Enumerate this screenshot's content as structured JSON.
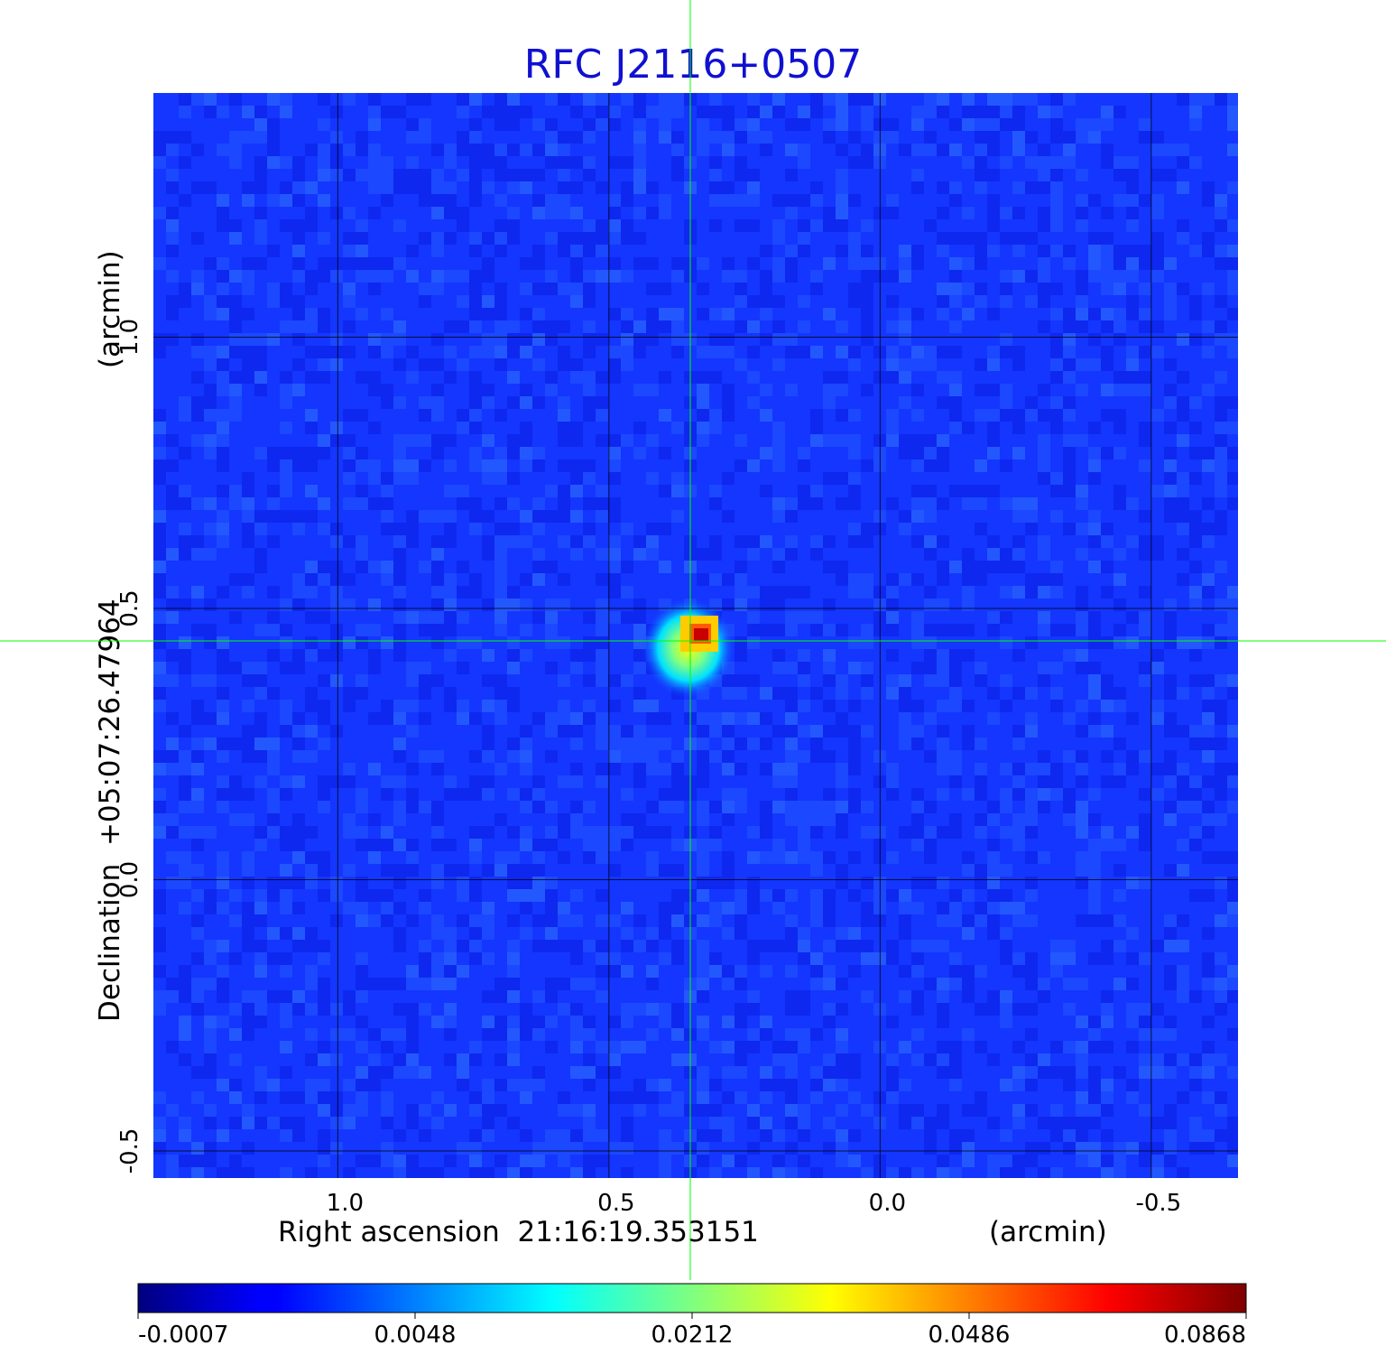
{
  "chart_data": {
    "type": "heatmap",
    "title": "RFC J2116+0507",
    "xlabel": "Right ascension  21:16:19.353151",
    "xlabel_unit": "(arcmin)",
    "ylabel": "Declination  +05:07:26.47964",
    "ylabel_unit": "(arcmin)",
    "xlim": [
      1.34,
      -0.66
    ],
    "ylim": [
      -0.55,
      1.45
    ],
    "x_ticks": [
      1.0,
      0.5,
      0.0,
      -0.5
    ],
    "x_tick_labels": [
      "1.0",
      "0.5",
      "0.0",
      "-0.5"
    ],
    "y_ticks": [
      -0.5,
      0.0,
      0.5,
      1.0
    ],
    "y_tick_labels": [
      "-0.5",
      "0.0",
      "0.5",
      "1.0"
    ],
    "grid": true,
    "crosshair": {
      "x": 0.35,
      "y": 0.44
    },
    "source_peak": {
      "x": 0.33,
      "y": 0.45,
      "value": 0.0868
    },
    "colorbar": {
      "colormap": "jet",
      "ticks": [
        "-0.0007",
        "0.0048",
        "0.0212",
        "0.0486",
        "0.0868"
      ]
    },
    "colors": {
      "title": "#1010d0",
      "crosshair": "#00ff00",
      "background_level": "#1436ff"
    }
  }
}
